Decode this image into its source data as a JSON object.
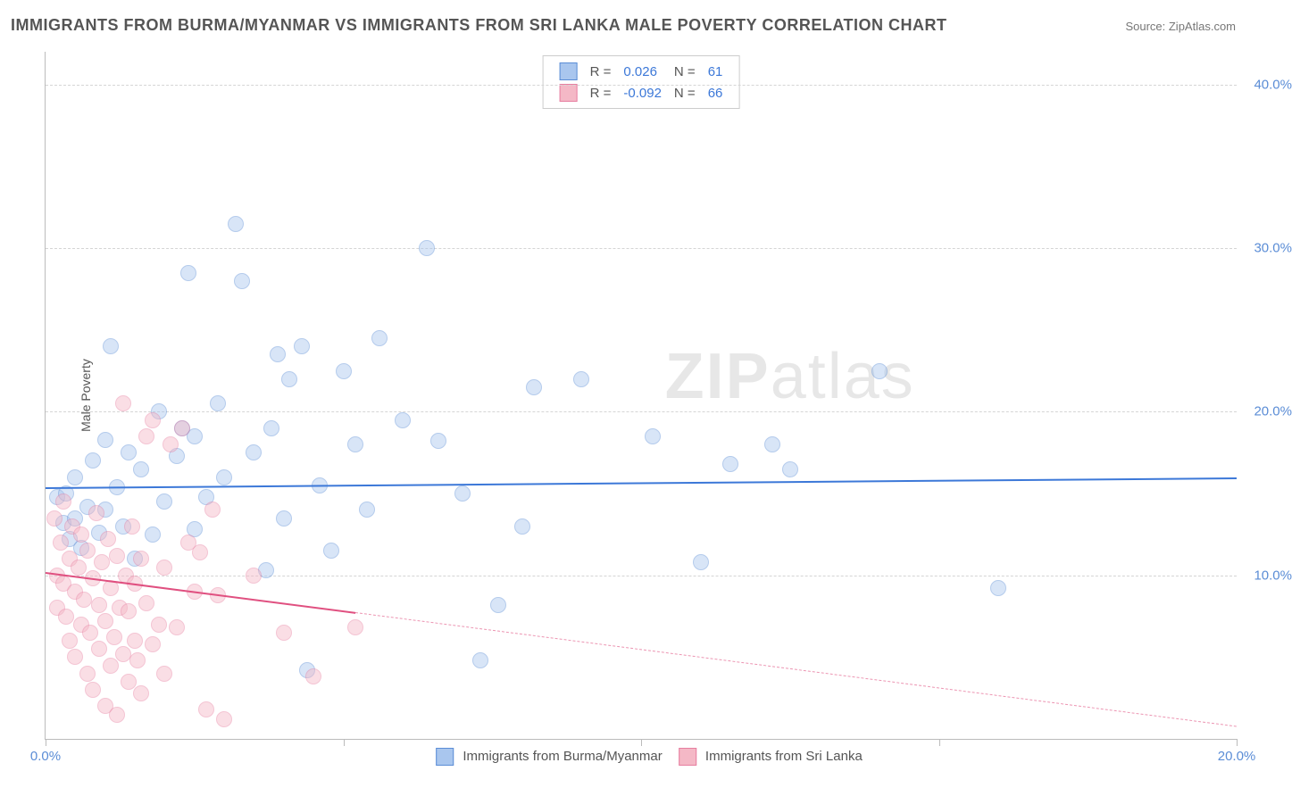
{
  "title": "IMMIGRANTS FROM BURMA/MYANMAR VS IMMIGRANTS FROM SRI LANKA MALE POVERTY CORRELATION CHART",
  "source": "Source: ZipAtlas.com",
  "ylabel": "Male Poverty",
  "watermark": {
    "bold": "ZIP",
    "thin": "atlas"
  },
  "chart": {
    "type": "scatter",
    "xlim": [
      0,
      20
    ],
    "ylim": [
      0,
      42
    ],
    "background_color": "#ffffff",
    "grid_color": "#d5d5d5",
    "yticks": [
      10,
      20,
      30,
      40
    ],
    "ytick_labels": [
      "10.0%",
      "20.0%",
      "30.0%",
      "40.0%"
    ],
    "xticks": [
      0,
      5,
      10,
      15,
      20
    ],
    "xtick_labels": [
      "0.0%",
      "",
      "",
      "",
      "20.0%"
    ],
    "point_radius": 8,
    "point_opacity": 0.45,
    "series": [
      {
        "name": "Immigrants from Burma/Myanmar",
        "color_fill": "#a9c6ee",
        "color_stroke": "#5b8dd6",
        "line_color": "#3c78d8",
        "R": "0.026",
        "N": "61",
        "regression": {
          "x1": 0,
          "y1": 15.4,
          "x2": 20,
          "y2": 16.0,
          "solid_to_x": 20
        },
        "points": [
          [
            0.2,
            14.8
          ],
          [
            0.3,
            13.2
          ],
          [
            0.35,
            15.0
          ],
          [
            0.4,
            12.2
          ],
          [
            0.5,
            16.0
          ],
          [
            0.5,
            13.5
          ],
          [
            0.6,
            11.7
          ],
          [
            0.7,
            14.2
          ],
          [
            0.8,
            17.0
          ],
          [
            0.9,
            12.6
          ],
          [
            1.0,
            18.3
          ],
          [
            1.0,
            14.0
          ],
          [
            1.1,
            24.0
          ],
          [
            1.2,
            15.4
          ],
          [
            1.3,
            13.0
          ],
          [
            1.4,
            17.5
          ],
          [
            1.5,
            11.0
          ],
          [
            1.6,
            16.5
          ],
          [
            1.8,
            12.5
          ],
          [
            1.9,
            20.0
          ],
          [
            2.0,
            14.5
          ],
          [
            2.2,
            17.3
          ],
          [
            2.3,
            19.0
          ],
          [
            2.4,
            28.5
          ],
          [
            2.5,
            12.8
          ],
          [
            2.5,
            18.5
          ],
          [
            2.7,
            14.8
          ],
          [
            2.9,
            20.5
          ],
          [
            3.0,
            16.0
          ],
          [
            3.2,
            31.5
          ],
          [
            3.3,
            28.0
          ],
          [
            3.5,
            17.5
          ],
          [
            3.7,
            10.3
          ],
          [
            3.8,
            19.0
          ],
          [
            4.0,
            13.5
          ],
          [
            4.1,
            22.0
          ],
          [
            4.3,
            24.0
          ],
          [
            4.4,
            4.2
          ],
          [
            4.6,
            15.5
          ],
          [
            4.8,
            11.5
          ],
          [
            5.0,
            22.5
          ],
          [
            5.2,
            18.0
          ],
          [
            5.4,
            14.0
          ],
          [
            5.6,
            24.5
          ],
          [
            6.4,
            30.0
          ],
          [
            6.6,
            18.2
          ],
          [
            7.0,
            15.0
          ],
          [
            7.3,
            4.8
          ],
          [
            7.6,
            8.2
          ],
          [
            8.0,
            13.0
          ],
          [
            8.2,
            21.5
          ],
          [
            9.0,
            22.0
          ],
          [
            10.2,
            18.5
          ],
          [
            11.0,
            10.8
          ],
          [
            12.2,
            18.0
          ],
          [
            12.5,
            16.5
          ],
          [
            14.0,
            22.5
          ],
          [
            16.0,
            9.2
          ],
          [
            11.5,
            16.8
          ],
          [
            6.0,
            19.5
          ],
          [
            3.9,
            23.5
          ]
        ]
      },
      {
        "name": "Immigrants from Sri Lanka",
        "color_fill": "#f4b8c6",
        "color_stroke": "#e77ea0",
        "line_color": "#e05080",
        "R": "-0.092",
        "N": "66",
        "regression": {
          "x1": 0,
          "y1": 10.2,
          "x2": 20,
          "y2": 0.8,
          "solid_to_x": 5.2
        },
        "points": [
          [
            0.15,
            13.5
          ],
          [
            0.2,
            10.0
          ],
          [
            0.2,
            8.0
          ],
          [
            0.25,
            12.0
          ],
          [
            0.3,
            9.5
          ],
          [
            0.3,
            14.5
          ],
          [
            0.35,
            7.5
          ],
          [
            0.4,
            11.0
          ],
          [
            0.4,
            6.0
          ],
          [
            0.45,
            13.0
          ],
          [
            0.5,
            9.0
          ],
          [
            0.5,
            5.0
          ],
          [
            0.55,
            10.5
          ],
          [
            0.6,
            7.0
          ],
          [
            0.6,
            12.5
          ],
          [
            0.65,
            8.5
          ],
          [
            0.7,
            4.0
          ],
          [
            0.7,
            11.5
          ],
          [
            0.75,
            6.5
          ],
          [
            0.8,
            9.8
          ],
          [
            0.8,
            3.0
          ],
          [
            0.85,
            13.8
          ],
          [
            0.9,
            5.5
          ],
          [
            0.9,
            8.2
          ],
          [
            0.95,
            10.8
          ],
          [
            1.0,
            2.0
          ],
          [
            1.0,
            7.2
          ],
          [
            1.05,
            12.2
          ],
          [
            1.1,
            4.5
          ],
          [
            1.1,
            9.2
          ],
          [
            1.15,
            6.2
          ],
          [
            1.2,
            11.2
          ],
          [
            1.2,
            1.5
          ],
          [
            1.25,
            8.0
          ],
          [
            1.3,
            5.2
          ],
          [
            1.3,
            20.5
          ],
          [
            1.35,
            10.0
          ],
          [
            1.4,
            3.5
          ],
          [
            1.4,
            7.8
          ],
          [
            1.45,
            13.0
          ],
          [
            1.5,
            6.0
          ],
          [
            1.5,
            9.5
          ],
          [
            1.55,
            4.8
          ],
          [
            1.6,
            11.0
          ],
          [
            1.6,
            2.8
          ],
          [
            1.7,
            8.3
          ],
          [
            1.7,
            18.5
          ],
          [
            1.8,
            5.8
          ],
          [
            1.8,
            19.5
          ],
          [
            1.9,
            7.0
          ],
          [
            2.0,
            10.5
          ],
          [
            2.0,
            4.0
          ],
          [
            2.1,
            18.0
          ],
          [
            2.2,
            6.8
          ],
          [
            2.3,
            19.0
          ],
          [
            2.4,
            12.0
          ],
          [
            2.5,
            9.0
          ],
          [
            2.6,
            11.4
          ],
          [
            2.7,
            1.8
          ],
          [
            2.8,
            14.0
          ],
          [
            2.9,
            8.8
          ],
          [
            3.0,
            1.2
          ],
          [
            3.5,
            10.0
          ],
          [
            4.0,
            6.5
          ],
          [
            4.5,
            3.8
          ],
          [
            5.2,
            6.8
          ]
        ]
      }
    ]
  },
  "legend_top": {
    "r_label": "R =",
    "n_label": "N =",
    "text_color": "#555",
    "value_color": "#3c78d8"
  },
  "legend_bottom": {
    "items": [
      "Immigrants from Burma/Myanmar",
      "Immigrants from Sri Lanka"
    ]
  }
}
